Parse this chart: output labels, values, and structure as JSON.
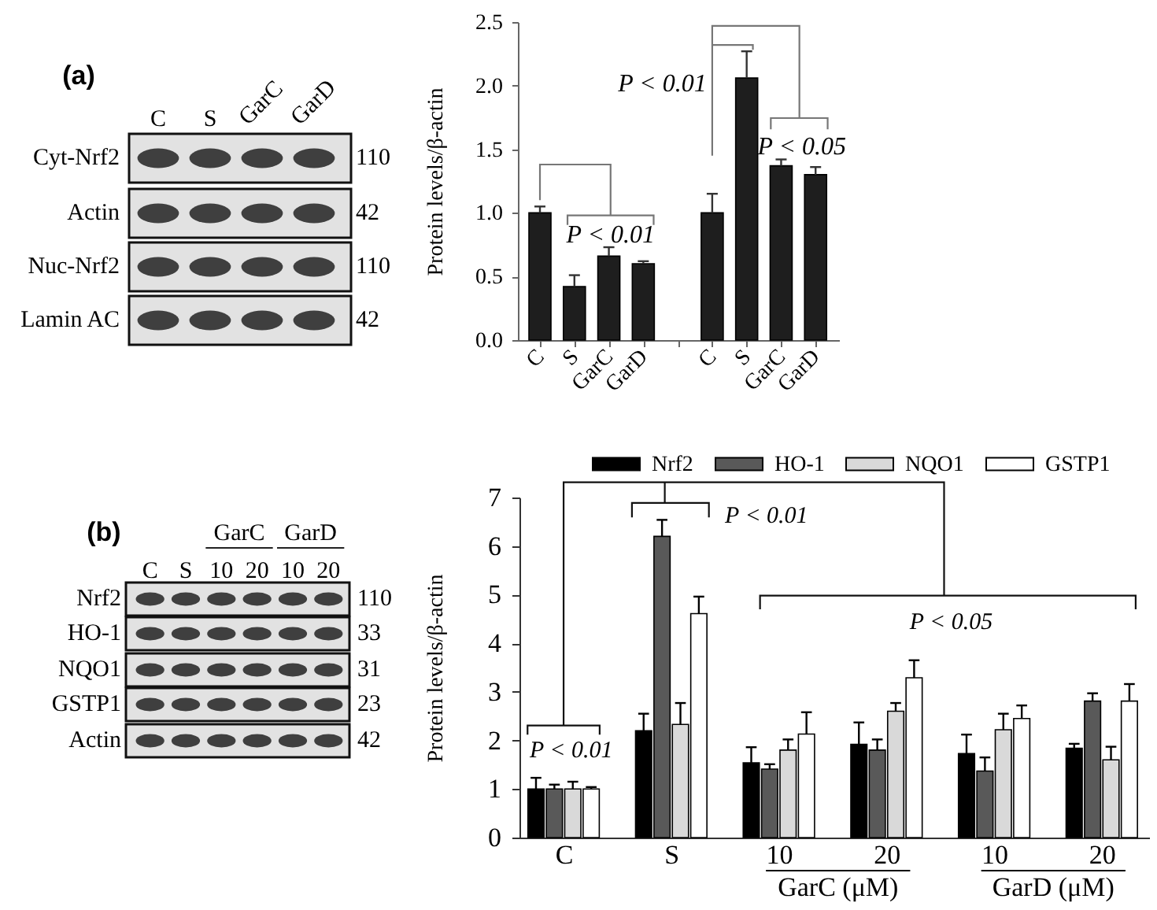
{
  "chart_data": [
    {
      "type": "other",
      "title": "(a)",
      "categories": [
        "C",
        "S",
        "GarC",
        "GarD"
      ],
      "y_categories": [
        "Cyt-Nrf2",
        "Actin",
        "Nuc-Nrf2",
        "Lamin AC"
      ],
      "y2_categories": [
        "110",
        "42",
        "110",
        "42"
      ]
    },
    {
      "type": "bar",
      "ylabel": "Protein levels/β-actin",
      "categories": [
        "C",
        "S",
        "GarC",
        "GarD",
        null,
        "C",
        "S",
        "GarC",
        "GarD"
      ],
      "values": [
        1.0,
        0.42,
        0.66,
        0.6,
        null,
        1.0,
        2.06,
        1.37,
        1.3
      ],
      "errors": [
        [
          1.0,
          1.05
        ],
        [
          0.42,
          0.51
        ],
        [
          0.66,
          0.73
        ],
        [
          0.6,
          0.62
        ],
        null,
        [
          1.0,
          1.15
        ],
        [
          2.06,
          2.27
        ],
        [
          1.37,
          1.42
        ],
        [
          1.3,
          1.36
        ]
      ],
      "color": "#1e1e1e",
      "ylim": [
        0,
        2.5
      ],
      "yticks": [
        {
          "value": 0,
          "label": "0.0"
        },
        0.5,
        {
          "value": 1,
          "label": "1.0"
        },
        1.5,
        {
          "value": 2,
          "label": "2.0"
        },
        2.5
      ],
      "grid": false,
      "annotations": [
        "P < 0.01",
        "P < 0.01",
        "P < 0.05"
      ]
    },
    {
      "type": "other",
      "title": "(b)",
      "categories": [
        "C",
        "S",
        "10",
        "20",
        "10",
        "20"
      ],
      "y_categories": [
        "Nrf2",
        "HO-1",
        "NQO1",
        "GSTP1",
        "Actin"
      ],
      "y2_categories": [
        "110",
        "33",
        "31",
        "23",
        "42"
      ],
      "annotations": [
        "GarC",
        "GarD"
      ]
    },
    {
      "type": "bar",
      "ylabel": "Protein levels/β-actin",
      "categories": [
        "C",
        "S",
        "10",
        "20",
        "10",
        "20"
      ],
      "series": [
        {
          "name": "Nrf2",
          "color": "#000000",
          "values": [
            1.0,
            2.2,
            1.54,
            1.92,
            1.73,
            1.84
          ],
          "errors": [
            [
              1.0,
              1.23
            ],
            [
              2.2,
              2.55
            ],
            [
              1.54,
              1.86
            ],
            [
              1.92,
              2.37
            ],
            [
              1.73,
              2.12
            ],
            [
              1.84,
              1.93
            ]
          ]
        },
        {
          "name": "HO-1",
          "color": "#595959",
          "values": [
            1.0,
            6.2,
            1.41,
            1.8,
            1.37,
            2.81
          ],
          "errors": [
            [
              1.0,
              1.09
            ],
            [
              6.2,
              6.54
            ],
            [
              1.41,
              1.51
            ],
            [
              1.8,
              2.02
            ],
            [
              1.37,
              1.65
            ],
            [
              2.81,
              2.97
            ]
          ]
        },
        {
          "name": "NQO1",
          "color": "#d9d9d9",
          "values": [
            1.0,
            2.33,
            1.8,
            2.6,
            2.22,
            1.6
          ],
          "errors": [
            [
              1.0,
              1.15
            ],
            [
              2.33,
              2.77
            ],
            [
              1.8,
              2.02
            ],
            [
              2.6,
              2.77
            ],
            [
              2.22,
              2.55
            ],
            [
              1.6,
              1.87
            ]
          ]
        },
        {
          "name": "GSTP1",
          "color": "#ffffff",
          "values": [
            1.0,
            4.61,
            2.13,
            3.29,
            2.45,
            2.81
          ],
          "errors": [
            [
              1.0,
              1.04
            ],
            [
              4.61,
              4.96
            ],
            [
              2.13,
              2.58
            ],
            [
              3.29,
              3.65
            ],
            [
              2.45,
              2.72
            ],
            [
              2.81,
              3.16
            ]
          ]
        }
      ],
      "ylim": [
        0,
        7
      ],
      "yticks": [
        0,
        1,
        2,
        3,
        4,
        5,
        6,
        7
      ],
      "grid": false,
      "legend": "top",
      "annotations": [
        "P < 0.01",
        "P < 0.01",
        "P < 0.05",
        "GarC (μM)",
        "GarD (μM)"
      ]
    }
  ]
}
